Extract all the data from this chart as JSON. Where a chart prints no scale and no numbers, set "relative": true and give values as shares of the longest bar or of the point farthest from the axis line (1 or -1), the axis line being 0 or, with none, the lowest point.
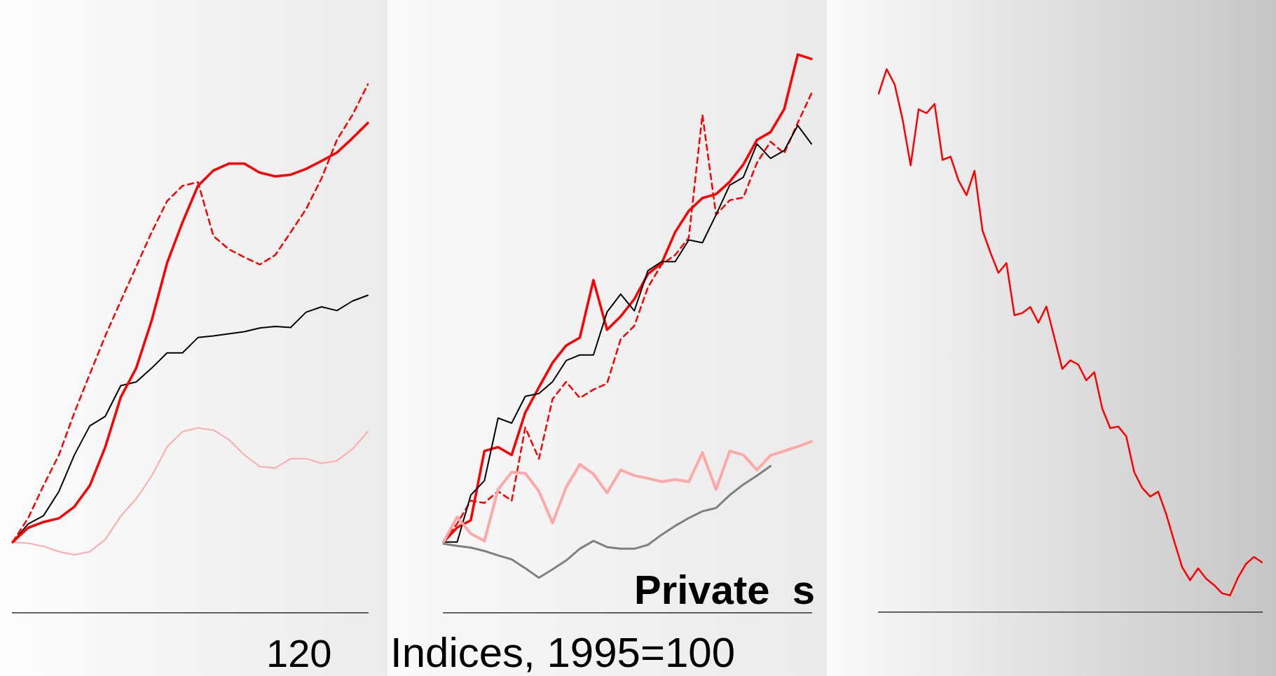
{
  "chart_data": [
    {
      "type": "line",
      "relative": true,
      "marker": "none",
      "categories": [
        null,
        null,
        null,
        null,
        null,
        null,
        null,
        null,
        null,
        null,
        null,
        null,
        null,
        null,
        null,
        null,
        null,
        null,
        null,
        null,
        null,
        null,
        null,
        null
      ],
      "series": [
        {
          "color": "#ff0000",
          "line_style": "solid",
          "values": [
            0.134,
            0.161,
            0.172,
            0.179,
            0.201,
            0.241,
            0.314,
            0.408,
            0.463,
            0.553,
            0.662,
            0.739,
            0.808,
            0.837,
            0.85,
            0.85,
            0.833,
            0.826,
            0.829,
            0.84,
            0.855,
            0.871,
            0.898,
            0.927
          ]
        },
        {
          "color": "#ff0000",
          "line_style": "dashed",
          "values": [
            0.134,
            0.179,
            0.241,
            0.299,
            0.379,
            0.452,
            0.524,
            0.59,
            0.655,
            0.72,
            0.779,
            0.808,
            0.815,
            0.713,
            0.688,
            0.673,
            0.659,
            0.677,
            0.72,
            0.764,
            0.822,
            0.895,
            0.942,
            1.0
          ]
        },
        {
          "color": "#000000",
          "line_style": "solid",
          "values": [
            0.134,
            0.168,
            0.184,
            0.23,
            0.299,
            0.354,
            0.372,
            0.43,
            0.437,
            0.463,
            0.492,
            0.492,
            0.521,
            0.524,
            0.528,
            0.532,
            0.539,
            0.542,
            0.54,
            0.569,
            0.579,
            0.572,
            0.59,
            0.601
          ]
        },
        {
          "color": "#ffaaaa",
          "line_style": "solid",
          "values": [
            0.134,
            0.132,
            0.126,
            0.116,
            0.11,
            0.116,
            0.139,
            0.183,
            0.216,
            0.259,
            0.314,
            0.343,
            0.35,
            0.346,
            0.328,
            0.299,
            0.277,
            0.274,
            0.292,
            0.292,
            0.283,
            0.288,
            0.31,
            0.343
          ]
        }
      ],
      "annotations": [
        "120"
      ]
    },
    {
      "type": "line",
      "relative": true,
      "marker": "none",
      "categories": [
        null,
        null,
        null,
        null,
        null,
        null,
        null,
        null,
        null,
        null,
        null,
        null,
        null,
        null,
        null,
        null,
        null,
        null,
        null,
        null,
        null,
        null,
        null,
        null,
        null,
        null,
        null,
        null
      ],
      "series": [
        {
          "color": "#808080",
          "line_style": "solid",
          "values": [
            0.124,
            0.12,
            0.117,
            0.111,
            0.103,
            0.096,
            0.08,
            0.063,
            0.078,
            0.094,
            0.115,
            0.129,
            0.118,
            0.115,
            0.115,
            0.122,
            0.14,
            0.156,
            0.17,
            0.182,
            0.188,
            0.211,
            0.23,
            0.246,
            0.263,
            null,
            null,
            null
          ]
        },
        {
          "color": "#ffa8a8",
          "line_style": "solid",
          "values": [
            0.127,
            0.172,
            0.142,
            0.129,
            0.221,
            0.252,
            0.25,
            0.218,
            0.161,
            0.225,
            0.266,
            0.249,
            0.215,
            0.256,
            0.246,
            0.241,
            0.235,
            0.239,
            0.235,
            0.287,
            0.221,
            0.29,
            0.283,
            0.256,
            0.282,
            0.29,
            0.298,
            0.307
          ]
        },
        {
          "color": "#000000",
          "line_style": "solid",
          "values": [
            0.127,
            0.127,
            0.211,
            0.237,
            0.349,
            0.34,
            0.388,
            0.393,
            0.414,
            0.452,
            0.462,
            0.462,
            0.539,
            0.571,
            0.541,
            0.613,
            0.629,
            0.629,
            0.668,
            0.663,
            0.713,
            0.766,
            0.78,
            0.84,
            0.814,
            0.828,
            0.873,
            0.84
          ]
        },
        {
          "color": "#ff0000",
          "line_style": "dashed",
          "values": [
            0.127,
            0.16,
            0.201,
            0.197,
            0.218,
            0.201,
            0.332,
            0.276,
            0.383,
            0.414,
            0.385,
            0.4,
            0.411,
            0.49,
            0.514,
            0.583,
            0.624,
            0.641,
            0.672,
            0.892,
            0.713,
            0.739,
            0.744,
            0.806,
            0.844,
            0.823,
            0.878,
            0.93
          ]
        },
        {
          "color": "#ff0000",
          "line_style": "solid",
          "values": [
            0.127,
            0.153,
            0.166,
            0.29,
            0.297,
            0.283,
            0.359,
            0.404,
            0.448,
            0.479,
            0.493,
            0.596,
            0.507,
            0.531,
            0.562,
            0.607,
            0.626,
            0.682,
            0.72,
            0.743,
            0.75,
            0.772,
            0.803,
            0.847,
            0.861,
            0.902,
            1.0,
            0.992
          ]
        }
      ],
      "annotations": [
        "Indices, 1995=100",
        "Private  s"
      ]
    },
    {
      "type": "line",
      "relative": true,
      "marker": "none",
      "categories": [
        null,
        null,
        null,
        null,
        null,
        null,
        null,
        null,
        null,
        null,
        null,
        null,
        null,
        null,
        null,
        null,
        null,
        null,
        null,
        null,
        null,
        null,
        null,
        null,
        null,
        null,
        null,
        null,
        null,
        null,
        null,
        null,
        null,
        null,
        null,
        null,
        null,
        null,
        null,
        null,
        null,
        null,
        null,
        null,
        null,
        null,
        null,
        null,
        null
      ],
      "series": [
        {
          "color": "#ff0000",
          "line_style": "solid",
          "values": [
            0.955,
            1,
            0.972,
            0.907,
            0.823,
            0.926,
            0.919,
            0.936,
            0.833,
            0.839,
            0.795,
            0.768,
            0.813,
            0.703,
            0.662,
            0.625,
            0.643,
            0.547,
            0.551,
            0.562,
            0.533,
            0.563,
            0.506,
            0.448,
            0.464,
            0.456,
            0.427,
            0.442,
            0.375,
            0.339,
            0.342,
            0.324,
            0.258,
            0.229,
            0.213,
            0.222,
            0.181,
            0.131,
            0.083,
            0.059,
            0.081,
            0.062,
            0.05,
            0.035,
            0.031,
            0.064,
            0.089,
            0.102,
            0.092
          ]
        }
      ]
    }
  ]
}
